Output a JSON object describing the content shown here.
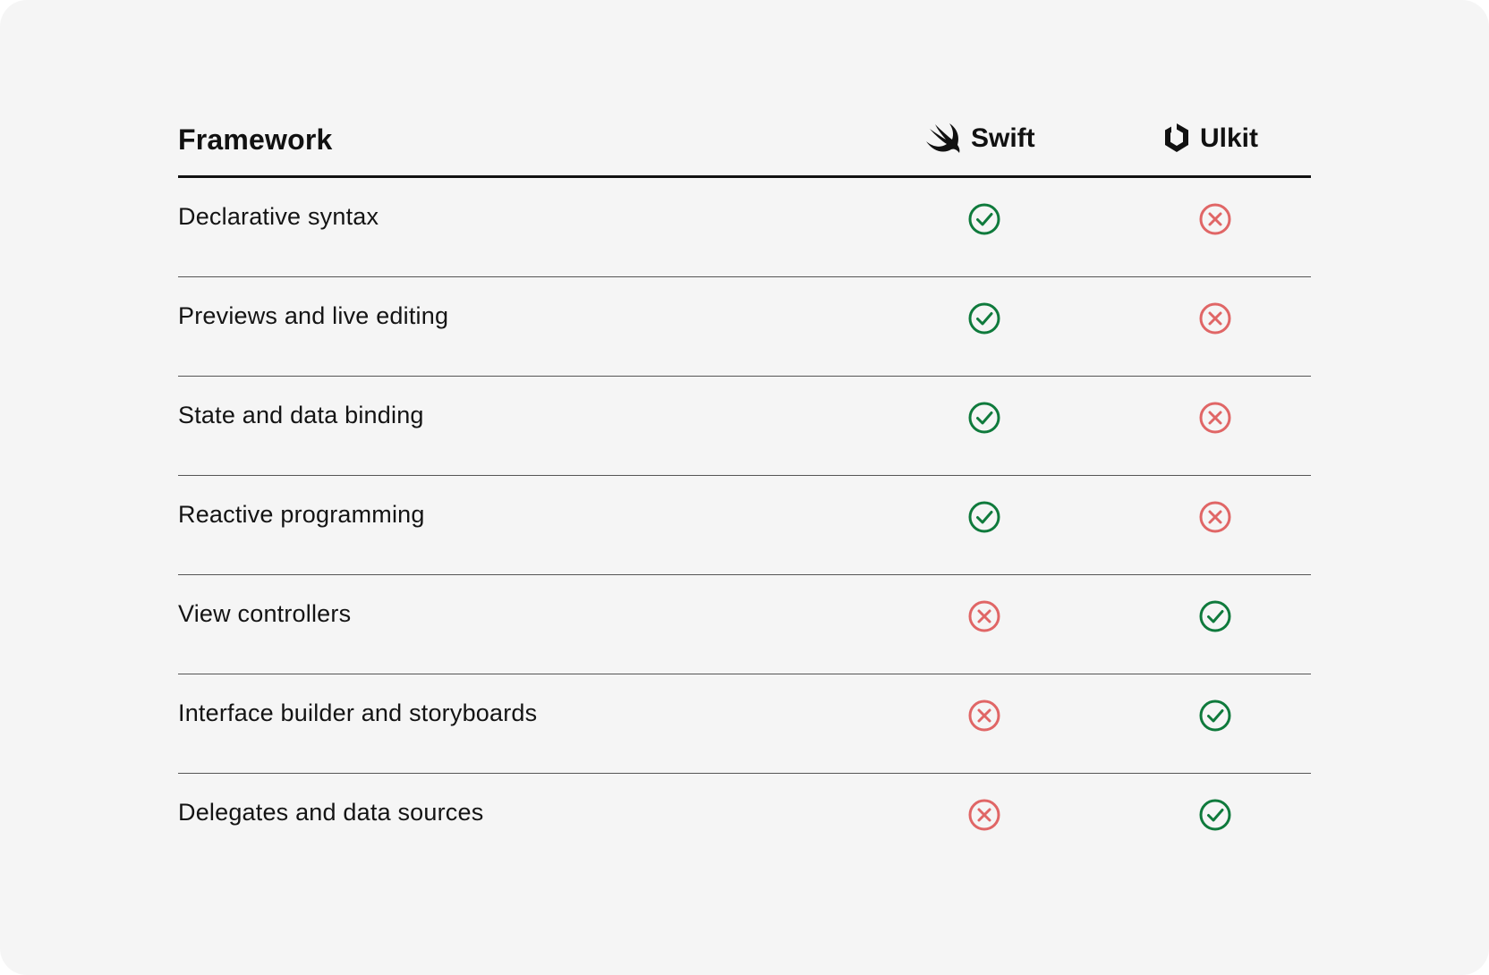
{
  "table": {
    "header_title": "Framework",
    "columns": [
      {
        "label": "Swift",
        "icon": "swift-logo-icon"
      },
      {
        "label": "Ulkit",
        "icon": "uikit-logo-icon"
      }
    ],
    "rows": [
      {
        "label": "Declarative syntax",
        "swift": "check",
        "uikit": "cross"
      },
      {
        "label": "Previews and live editing",
        "swift": "check",
        "uikit": "cross"
      },
      {
        "label": "State and data binding",
        "swift": "check",
        "uikit": "cross"
      },
      {
        "label": "Reactive programming",
        "swift": "check",
        "uikit": "cross"
      },
      {
        "label": "View controllers",
        "swift": "cross",
        "uikit": "check"
      },
      {
        "label": "Interface builder and storyboards",
        "swift": "cross",
        "uikit": "check"
      },
      {
        "label": "Delegates and data sources",
        "swift": "cross",
        "uikit": "check"
      }
    ]
  },
  "colors": {
    "check": "#0f7a3c",
    "cross": "#e06666",
    "background": "#f5f5f5",
    "text": "#111111"
  }
}
